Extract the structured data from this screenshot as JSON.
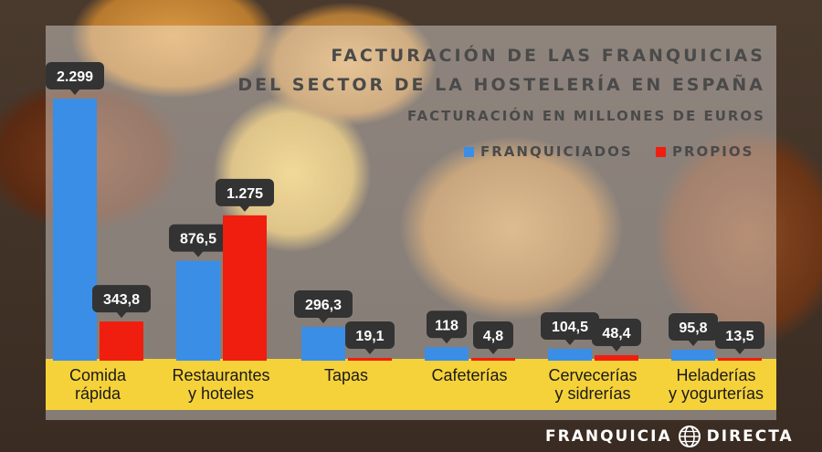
{
  "title_line1": "FACTURACIÓN DE LAS FRANQUICIAS",
  "title_line2": "DEL SECTOR DE LA HOSTELERÍA EN ESPAÑA",
  "subtitle": "FACTURACIÓN EN MILLONES DE EUROS",
  "legend": {
    "franquiciados": "FRANQUICIADOS",
    "propios": "PROPIOS"
  },
  "colors": {
    "franquiciados": "#3a8ee6",
    "propios": "#f01e0e",
    "label_bg": "#333333",
    "band": "#f6d23a"
  },
  "logo": {
    "left": "FRANQUICIA",
    "right": "DIRECTA"
  },
  "chart_data": {
    "type": "bar",
    "categories": [
      [
        "Comida",
        "rápida"
      ],
      [
        "Restaurantes",
        "y hoteles"
      ],
      [
        "Tapas"
      ],
      [
        "Cafeterías"
      ],
      [
        "Cervecerías",
        "y sidrerías"
      ],
      [
        "Heladerías",
        "y yogurterías"
      ]
    ],
    "series": [
      {
        "name": "FRANQUICIADOS",
        "values": [
          2299,
          876.5,
          296.3,
          118,
          104.5,
          95.8
        ],
        "labels": [
          "2.299",
          "876,5",
          "296,3",
          "118",
          "104,5",
          "95,8"
        ]
      },
      {
        "name": "PROPIOS",
        "values": [
          343.8,
          1275,
          19.1,
          4.8,
          48.4,
          13.5
        ],
        "labels": [
          "343,8",
          "1.275",
          "19,1",
          "4,8",
          "48,4",
          "13,5"
        ]
      }
    ],
    "ylim": [
      0,
      2299
    ],
    "grid": false,
    "legend_position": "top-right",
    "bar_labels": "callout-above-bars"
  }
}
